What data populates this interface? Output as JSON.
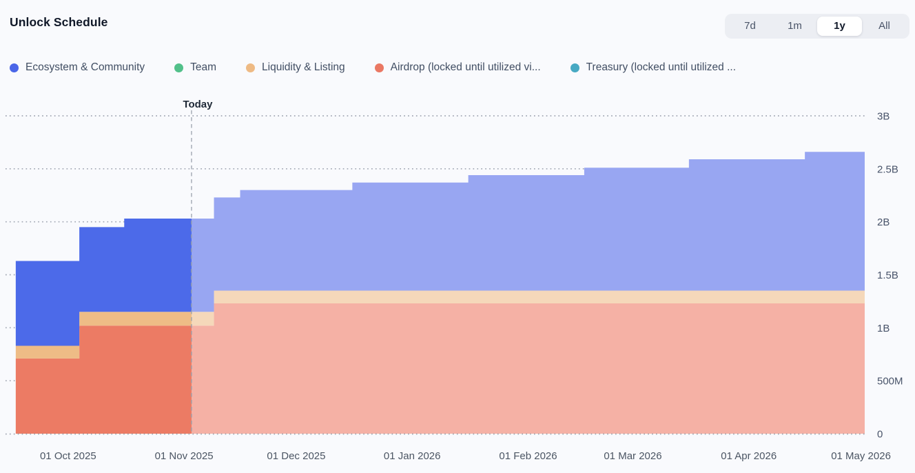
{
  "header": {
    "title": "Unlock Schedule",
    "range_buttons": [
      {
        "label": "7d",
        "selected": false
      },
      {
        "label": "1m",
        "selected": false
      },
      {
        "label": "1y",
        "selected": true
      },
      {
        "label": "All",
        "selected": false
      }
    ]
  },
  "legend": [
    {
      "label": "Ecosystem & Community",
      "color": "#4a66e8"
    },
    {
      "label": "Team",
      "color": "#52c08a"
    },
    {
      "label": "Liquidity & Listing",
      "color": "#eeba84"
    },
    {
      "label": "Airdrop (locked until utilized vi...",
      "color": "#ea7863"
    },
    {
      "label": "Treasury (locked until utilized ...",
      "color": "#47a9c3"
    }
  ],
  "chart_data": {
    "type": "area",
    "variant": "stacked-step",
    "title": "Unlock Schedule",
    "unit": "tokens",
    "value_scale": "billions",
    "today": "2025-11-03",
    "today_label": "Today",
    "x_domain": [
      "2025-09-15",
      "2026-05-02"
    ],
    "x_axis": {
      "ticks": [
        {
          "date": "2025-10-01",
          "label": "01 Oct 2025"
        },
        {
          "date": "2025-11-01",
          "label": "01 Nov 2025"
        },
        {
          "date": "2025-12-01",
          "label": "01 Dec 2025"
        },
        {
          "date": "2026-01-01",
          "label": "01 Jan 2026"
        },
        {
          "date": "2026-02-01",
          "label": "01 Feb 2026"
        },
        {
          "date": "2026-03-01",
          "label": "01 Mar 2026"
        },
        {
          "date": "2026-04-01",
          "label": "01 Apr 2026"
        },
        {
          "date": "2026-05-01",
          "label": "01 May 2026"
        }
      ]
    },
    "y_axis": {
      "max": 3,
      "position": "right",
      "grid": "dotted",
      "ticks": [
        {
          "value": 0,
          "label": "0"
        },
        {
          "value": 0.5,
          "label": "500M"
        },
        {
          "value": 1,
          "label": "1B"
        },
        {
          "value": 1.5,
          "label": "1.5B"
        },
        {
          "value": 2,
          "label": "2B"
        },
        {
          "value": 2.5,
          "label": "2.5B"
        },
        {
          "value": 3,
          "label": "3B"
        }
      ]
    },
    "series": [
      {
        "name": "Airdrop (locked until utilized vi...",
        "color": "#ec7b64",
        "faded_color": "#f5b1a5",
        "steps": [
          [
            "2025-09-17",
            0.71
          ],
          [
            "2025-10-04",
            1.02
          ],
          [
            "2025-11-09",
            1.23
          ]
        ]
      },
      {
        "name": "Liquidity & Listing",
        "color": "#eebc86",
        "faded_color": "#f5d8ba",
        "steps": [
          [
            "2025-09-17",
            0.12
          ],
          [
            "2025-10-04",
            0.13
          ],
          [
            "2025-11-09",
            0.12
          ]
        ]
      },
      {
        "name": "Ecosystem & Community",
        "color": "#4c6ae9",
        "faded_color": "#98a6f2",
        "steps": [
          [
            "2025-09-17",
            0.8
          ],
          [
            "2025-10-16",
            0.88
          ],
          [
            "2025-11-16",
            0.95
          ],
          [
            "2025-12-16",
            1.02
          ],
          [
            "2026-01-16",
            1.09
          ],
          [
            "2026-02-16",
            1.16
          ],
          [
            "2026-03-16",
            1.24
          ],
          [
            "2026-04-16",
            1.31
          ]
        ]
      },
      {
        "name": "Team",
        "color": "#52c08a",
        "faded_color": "#a8dfc4",
        "steps": [
          [
            "2025-09-17",
            0
          ]
        ]
      },
      {
        "name": "Treasury (locked until utilized ...",
        "color": "#47a9c3",
        "faded_color": "#a3d4e1",
        "steps": [
          [
            "2025-09-17",
            0
          ]
        ]
      }
    ],
    "notes": {
      "past_style": "solid colors left of today line",
      "future_style": "faded colors right of today line"
    }
  }
}
